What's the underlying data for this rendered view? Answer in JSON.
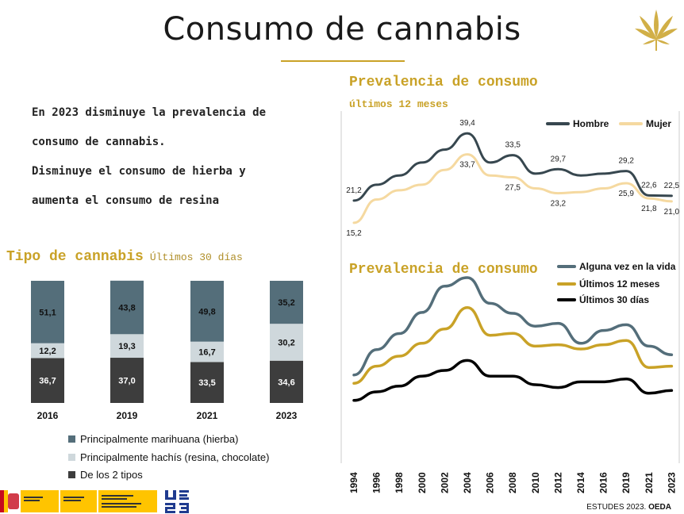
{
  "header": {
    "title": "Consumo de cannabis"
  },
  "intro": {
    "lines": [
      "En 2023 disminuye la prevalencia de",
      "consumo de cannabis.",
      "Disminuye el consumo de hierba y",
      "aumenta el consumo de resina"
    ]
  },
  "colors": {
    "gold": "#C9A227",
    "dark_slate": "#37474F",
    "light_gold": "#F5D9A0",
    "slate_blue": "#546E7A",
    "gray_light": "#CFD8DC",
    "dark_gray": "#3D3D3D",
    "black": "#000000"
  },
  "footer": {
    "source_a": "ESTUDES 2023.",
    "source_b": "OEDA"
  },
  "chart_data": [
    {
      "type": "bar",
      "title": "Tipo de cannabis",
      "subtitle": "Últimos 30 días",
      "stacked": true,
      "categories": [
        "2016",
        "2019",
        "2021",
        "2023"
      ],
      "series": [
        {
          "name": "De los 2 tipos",
          "color": "#3D3D3D",
          "values": [
            36.7,
            37.0,
            33.5,
            34.6
          ],
          "labels": [
            "36,7",
            "37,0",
            "33,5",
            "34,6"
          ]
        },
        {
          "name": "Principalmente hachís (resina, chocolate)",
          "color": "#CFD8DC",
          "values": [
            12.2,
            19.3,
            16.7,
            30.2
          ],
          "labels": [
            "12,2",
            "19,3",
            "16,7",
            "30,2"
          ]
        },
        {
          "name": "Principalmente marihuana (hierba)",
          "color": "#546E7A",
          "values": [
            51.1,
            43.8,
            49.8,
            35.2
          ],
          "labels": [
            "51,1",
            "43,8",
            "49,8",
            "35,2"
          ]
        }
      ],
      "legend_order": [
        2,
        1,
        0
      ],
      "legend_position": "bottom"
    },
    {
      "type": "line",
      "title": "Prevalencia de consumo",
      "subtitle": "últimos 12 meses",
      "x": [
        1994,
        1996,
        1998,
        2000,
        2002,
        2004,
        2006,
        2008,
        2010,
        2012,
        2014,
        2016,
        2019,
        2021,
        2023
      ],
      "ylim": [
        10,
        45
      ],
      "series": [
        {
          "name": "Hombre",
          "color": "#37474F",
          "values": [
            21.2,
            25.5,
            28.0,
            31.5,
            35.0,
            39.4,
            31.5,
            33.5,
            28.5,
            29.7,
            28.0,
            28.5,
            29.2,
            22.6,
            22.5
          ]
        },
        {
          "name": "Mujer",
          "color": "#F5D9A0",
          "values": [
            15.2,
            21.5,
            24.0,
            25.5,
            29.5,
            33.7,
            28.0,
            27.5,
            24.5,
            23.2,
            23.5,
            24.5,
            25.9,
            21.8,
            21.0
          ]
        }
      ],
      "data_labels": [
        {
          "series": 0,
          "index": 0,
          "text": "21,2"
        },
        {
          "series": 0,
          "index": 5,
          "text": "39,4"
        },
        {
          "series": 0,
          "index": 7,
          "text": "33,5"
        },
        {
          "series": 0,
          "index": 9,
          "text": "29,7"
        },
        {
          "series": 0,
          "index": 12,
          "text": "29,2"
        },
        {
          "series": 0,
          "index": 13,
          "text": "22,6"
        },
        {
          "series": 0,
          "index": 14,
          "text": "22,5"
        },
        {
          "series": 1,
          "index": 0,
          "text": "15,2"
        },
        {
          "series": 1,
          "index": 5,
          "text": "33,7"
        },
        {
          "series": 1,
          "index": 7,
          "text": "27,5"
        },
        {
          "series": 1,
          "index": 9,
          "text": "23,2"
        },
        {
          "series": 1,
          "index": 12,
          "text": "25,9"
        },
        {
          "series": 1,
          "index": 13,
          "text": "21,8"
        },
        {
          "series": 1,
          "index": 14,
          "text": "21,0"
        }
      ],
      "legend_position": "top-right"
    },
    {
      "type": "line",
      "title": "Prevalencia de consumo",
      "x": [
        "1994",
        "1996",
        "1998",
        "2000",
        "2002",
        "2004",
        "2006",
        "2008",
        "2010",
        "2012",
        "2014",
        "2016",
        "2019",
        "2021",
        "2023"
      ],
      "ylim": [
        0,
        55
      ],
      "series": [
        {
          "name": "Alguna vez en la vida",
          "color": "#546E7A",
          "values": [
            20.9,
            29.8,
            35.4,
            42.8,
            52.0,
            55.0,
            46.0,
            42.5,
            38.0,
            39.0,
            32.0,
            36.5,
            38.5,
            31.0,
            28.0
          ]
        },
        {
          "name": "Últimos 12 meses",
          "color": "#C9A227",
          "values": [
            18.0,
            24.0,
            27.5,
            32.0,
            37.0,
            44.5,
            34.8,
            35.5,
            31.0,
            31.5,
            30.0,
            31.5,
            33.0,
            23.5,
            24.0
          ]
        },
        {
          "name": "Últimos 30 días",
          "color": "#000000",
          "values": [
            12.0,
            15.0,
            17.0,
            20.5,
            22.5,
            26.0,
            20.5,
            20.5,
            17.5,
            16.5,
            18.5,
            18.5,
            19.5,
            14.5,
            15.5
          ]
        }
      ],
      "legend_position": "top-right"
    }
  ]
}
